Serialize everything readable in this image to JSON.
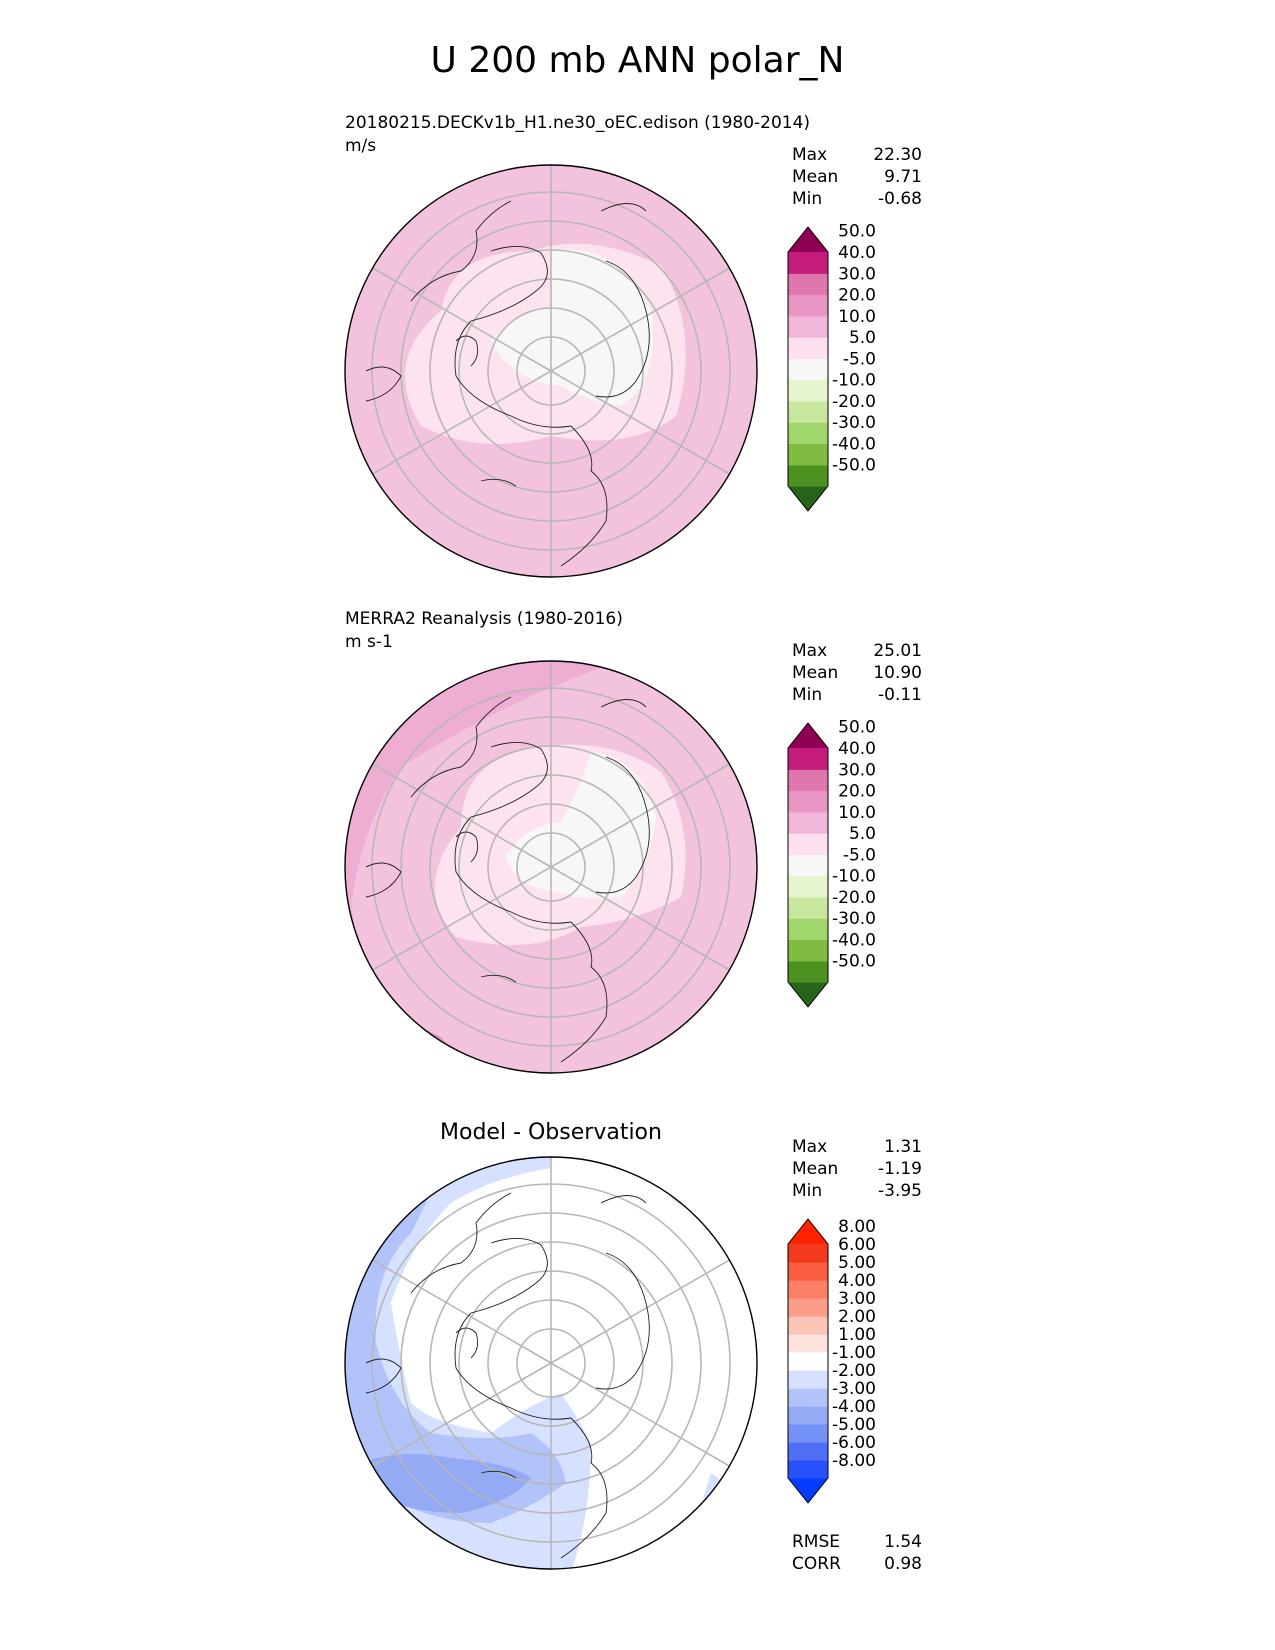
{
  "title": "U 200 mb ANN polar_N",
  "panels": [
    {
      "id": "test",
      "title": "20180215.DECKv1b_H1.ne30_oEC.edison (1980-2014)",
      "units": "m/s",
      "stats": [
        {
          "label": "Max",
          "value": "22.30"
        },
        {
          "label": "Mean",
          "value": "9.71"
        },
        {
          "label": "Min",
          "value": "-0.68"
        }
      ],
      "colorbar": {
        "colors": [
          "#276419",
          "#4d9221",
          "#7fbc41",
          "#a1d76a",
          "#c8e8a0",
          "#e6f5d0",
          "#f7f7f7",
          "#fde0ef",
          "#f1b6da",
          "#e897c4",
          "#de77ae",
          "#c51b7d",
          "#8e0152"
        ],
        "labels": [
          "-50.0",
          "-40.0",
          "-30.0",
          "-20.0",
          "-10.0",
          "-5.0",
          "5.0",
          "10.0",
          "20.0",
          "30.0",
          "40.0",
          "50.0"
        ]
      }
    },
    {
      "id": "reference",
      "title": "MERRA2 Reanalysis (1980-2016)",
      "units": "m s-1",
      "stats": [
        {
          "label": "Max",
          "value": "25.01"
        },
        {
          "label": "Mean",
          "value": "10.90"
        },
        {
          "label": "Min",
          "value": "-0.11"
        }
      ],
      "colorbar": {
        "colors": [
          "#276419",
          "#4d9221",
          "#7fbc41",
          "#a1d76a",
          "#c8e8a0",
          "#e6f5d0",
          "#f7f7f7",
          "#fde0ef",
          "#f1b6da",
          "#e897c4",
          "#de77ae",
          "#c51b7d",
          "#8e0152"
        ],
        "labels": [
          "-50.0",
          "-40.0",
          "-30.0",
          "-20.0",
          "-10.0",
          "-5.0",
          "5.0",
          "10.0",
          "20.0",
          "30.0",
          "40.0",
          "50.0"
        ]
      }
    },
    {
      "id": "difference",
      "title": "Model - Observation",
      "stats": [
        {
          "label": "Max",
          "value": "1.31"
        },
        {
          "label": "Mean",
          "value": "-1.19"
        },
        {
          "label": "Min",
          "value": "-3.95"
        }
      ],
      "extra_stats": [
        {
          "label": "RMSE",
          "value": "1.54"
        },
        {
          "label": "CORR",
          "value": "0.98"
        }
      ],
      "colorbar": {
        "colors": [
          "#053dff",
          "#2651f9",
          "#4f6ff5",
          "#7491f5",
          "#94aaf5",
          "#b2c3fa",
          "#d6e0ff",
          "#ffffff",
          "#fde3de",
          "#fbc4b6",
          "#fc9d87",
          "#fc8068",
          "#f95d3f",
          "#f43a1e",
          "#ff2200"
        ],
        "labels": [
          "-8.00",
          "-6.00",
          "-5.00",
          "-4.00",
          "-3.00",
          "-2.00",
          "-1.00",
          "1.00",
          "2.00",
          "3.00",
          "4.00",
          "5.00",
          "6.00",
          "8.00"
        ]
      }
    }
  ]
}
